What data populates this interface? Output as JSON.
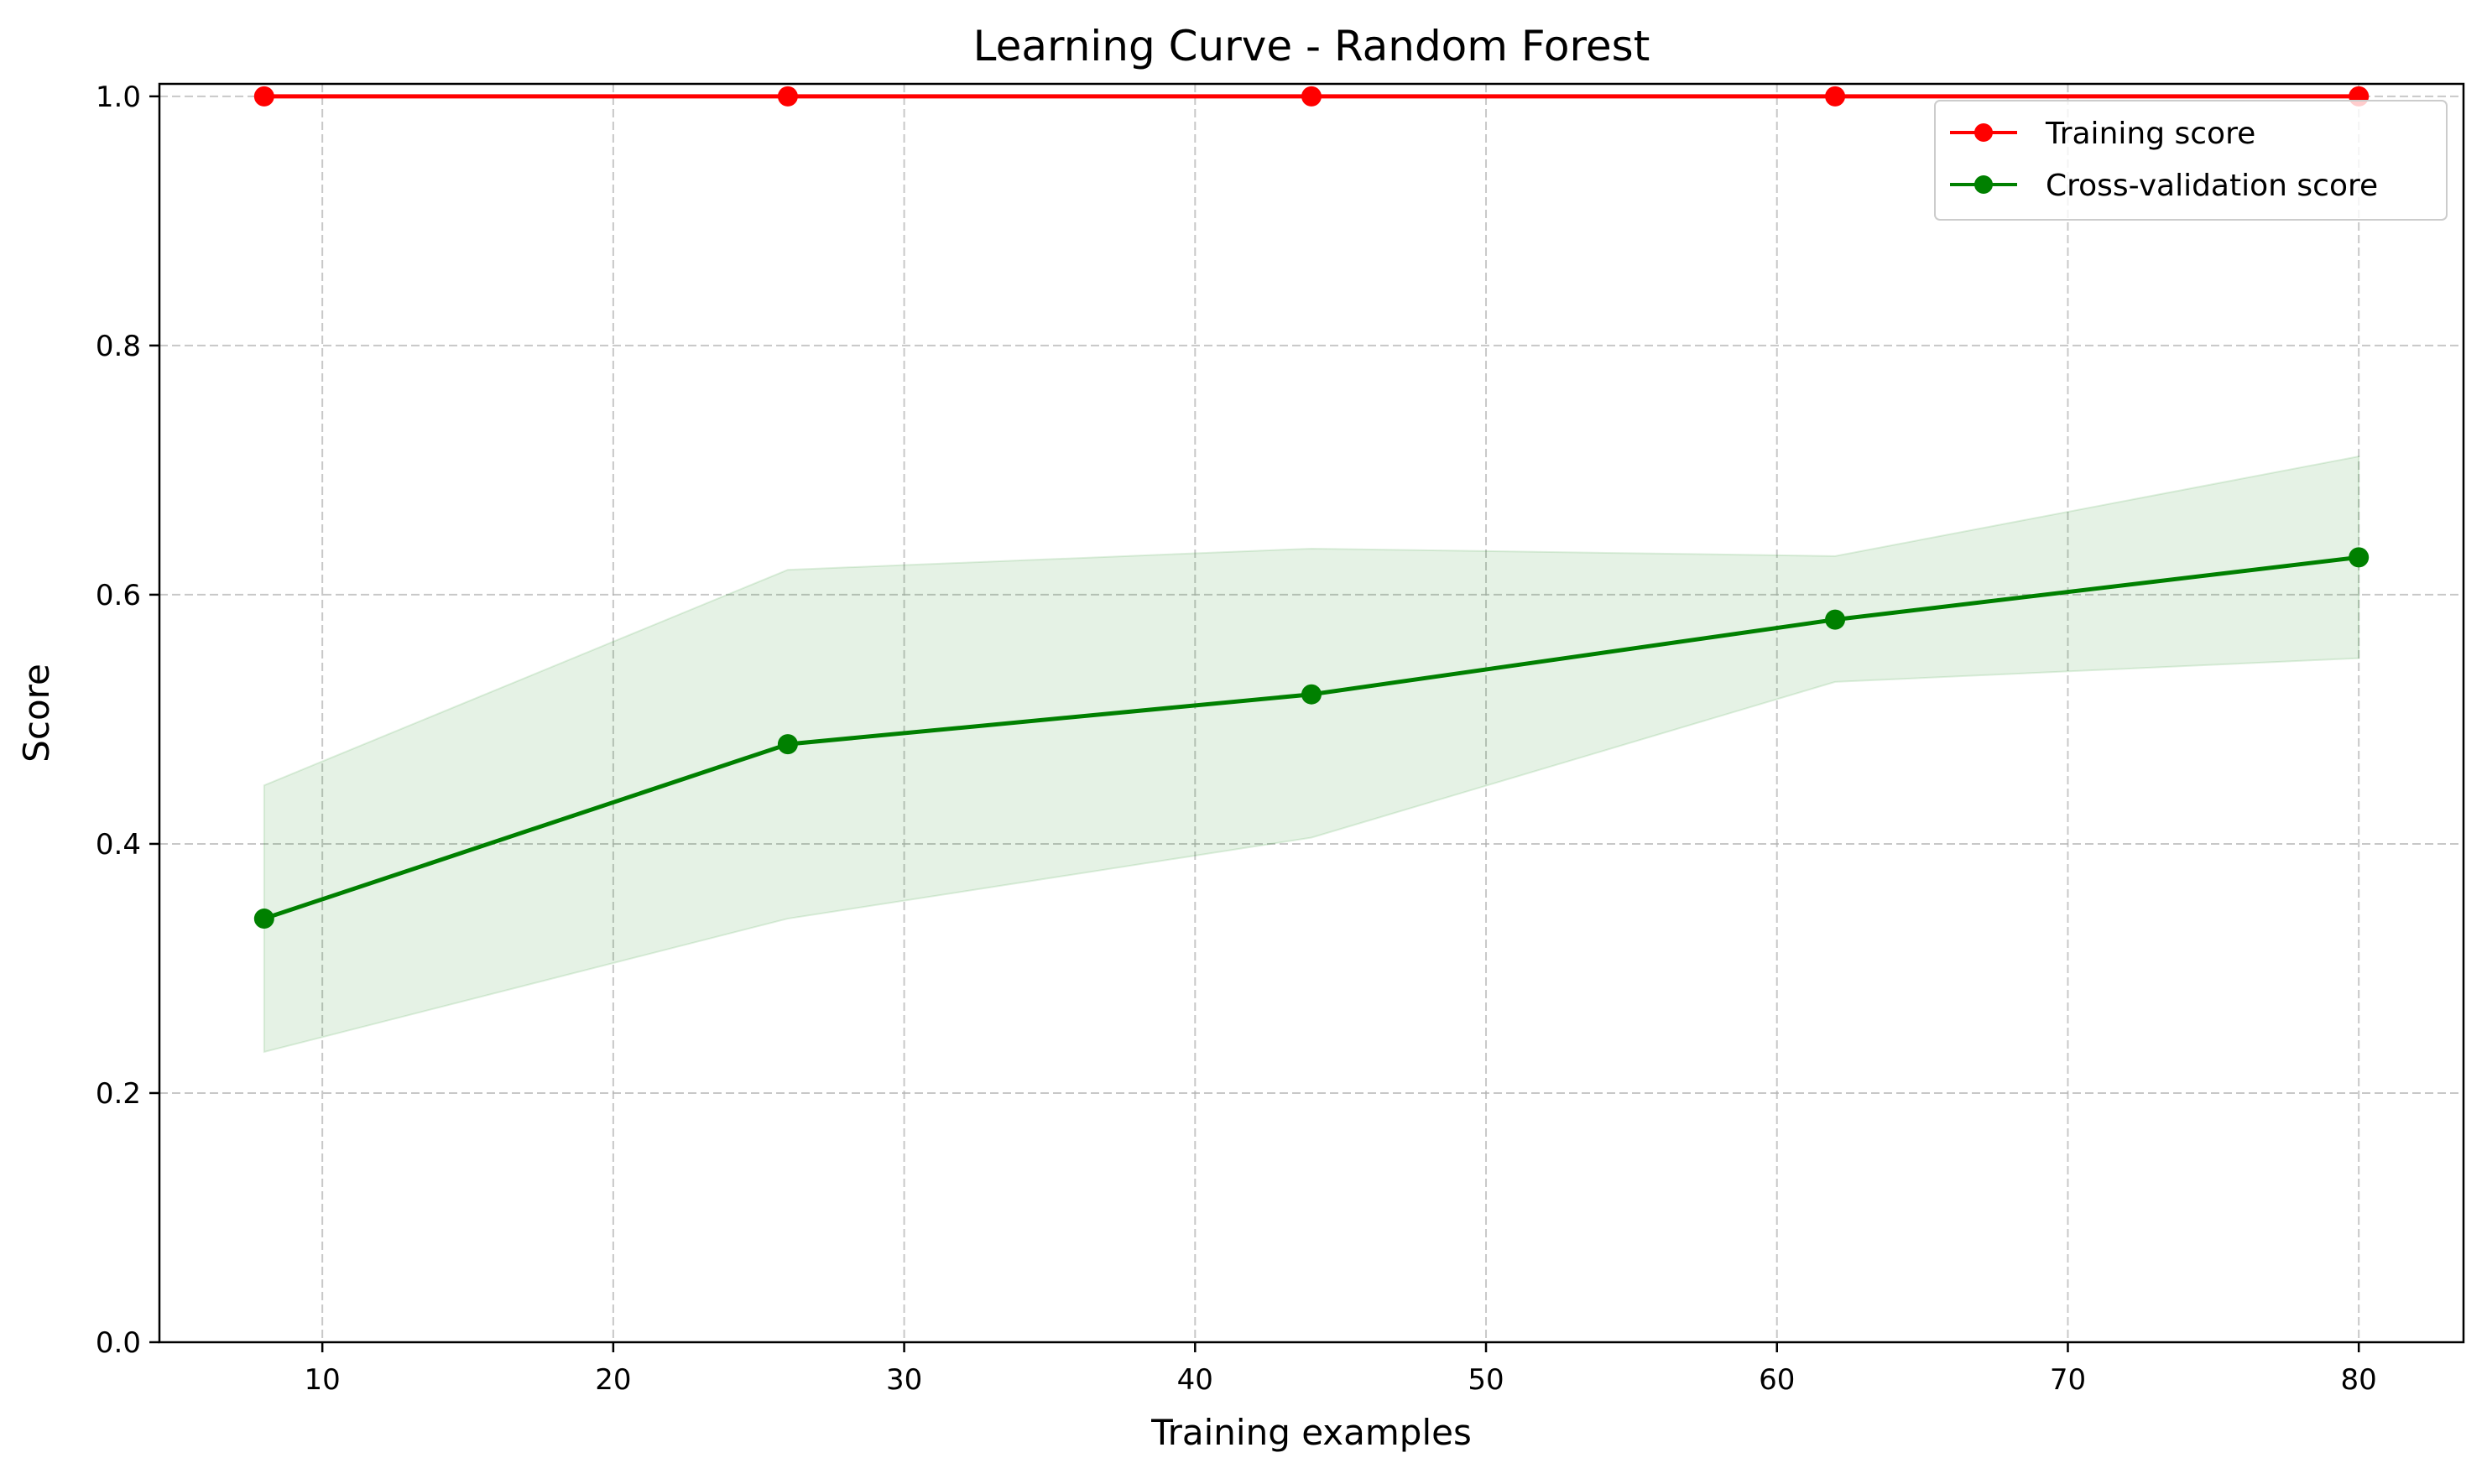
{
  "chart_data": {
    "type": "line",
    "title": "Learning Curve - Random Forest",
    "xlabel": "Training examples",
    "ylabel": "Score",
    "x": [
      8,
      26,
      44,
      62,
      80
    ],
    "xlim": [
      4.4,
      83.6
    ],
    "ylim": [
      0.0,
      1.01
    ],
    "xticks": [
      10,
      20,
      30,
      40,
      50,
      60,
      70,
      80
    ],
    "xtick_labels": [
      "10",
      "20",
      "30",
      "40",
      "50",
      "60",
      "70",
      "80"
    ],
    "yticks": [
      0.0,
      0.2,
      0.4,
      0.6,
      0.8,
      1.0
    ],
    "ytick_labels": [
      "0.0",
      "0.2",
      "0.4",
      "0.6",
      "0.8",
      "1.0"
    ],
    "grid": true,
    "legend_position": "top-right",
    "series": [
      {
        "name": "Training score",
        "color": "#ff0000",
        "values": [
          1.0,
          1.0,
          1.0,
          1.0,
          1.0
        ]
      },
      {
        "name": "Cross-validation score",
        "color": "#008000",
        "values": [
          0.34,
          0.48,
          0.52,
          0.58,
          0.63
        ],
        "band_lower": [
          0.233,
          0.34,
          0.405,
          0.53,
          0.549
        ],
        "band_upper": [
          0.447,
          0.62,
          0.637,
          0.631,
          0.711
        ],
        "band_color": "#008000"
      }
    ]
  }
}
